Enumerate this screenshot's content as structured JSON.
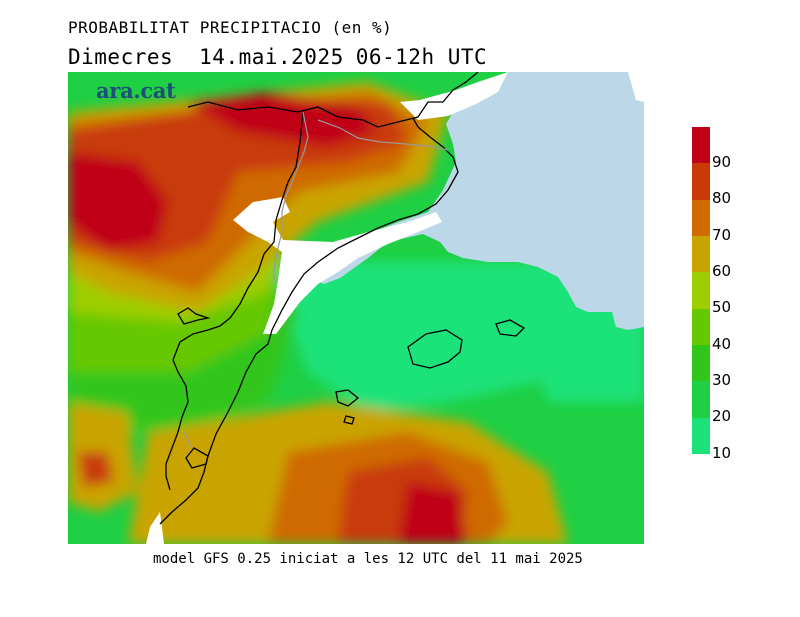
{
  "title": {
    "line1": "PROBABILITAT PRECIPITACIO (en %)",
    "day": "Dimecres",
    "date": "14.mai.2025",
    "period": "06-12h UTC"
  },
  "brand": "ara.cat",
  "footer": "model GFS 0.25 iniciat a les 12 UTC del 11 mai 2025",
  "legend": {
    "ticks": [
      "90",
      "80",
      "70",
      "60",
      "50",
      "40",
      "30",
      "20",
      "10"
    ],
    "colors": [
      "#bf0017",
      "#c93a08",
      "#cf6b00",
      "#c9a400",
      "#9fce00",
      "#66c800",
      "#33c61a",
      "#1fcf44",
      "#1de27a"
    ]
  },
  "map_colors": {
    "sea": "#bcd7e8",
    "land_gap": "#ffffff",
    "coast": "#000000",
    "border": "#9a9a9a"
  }
}
